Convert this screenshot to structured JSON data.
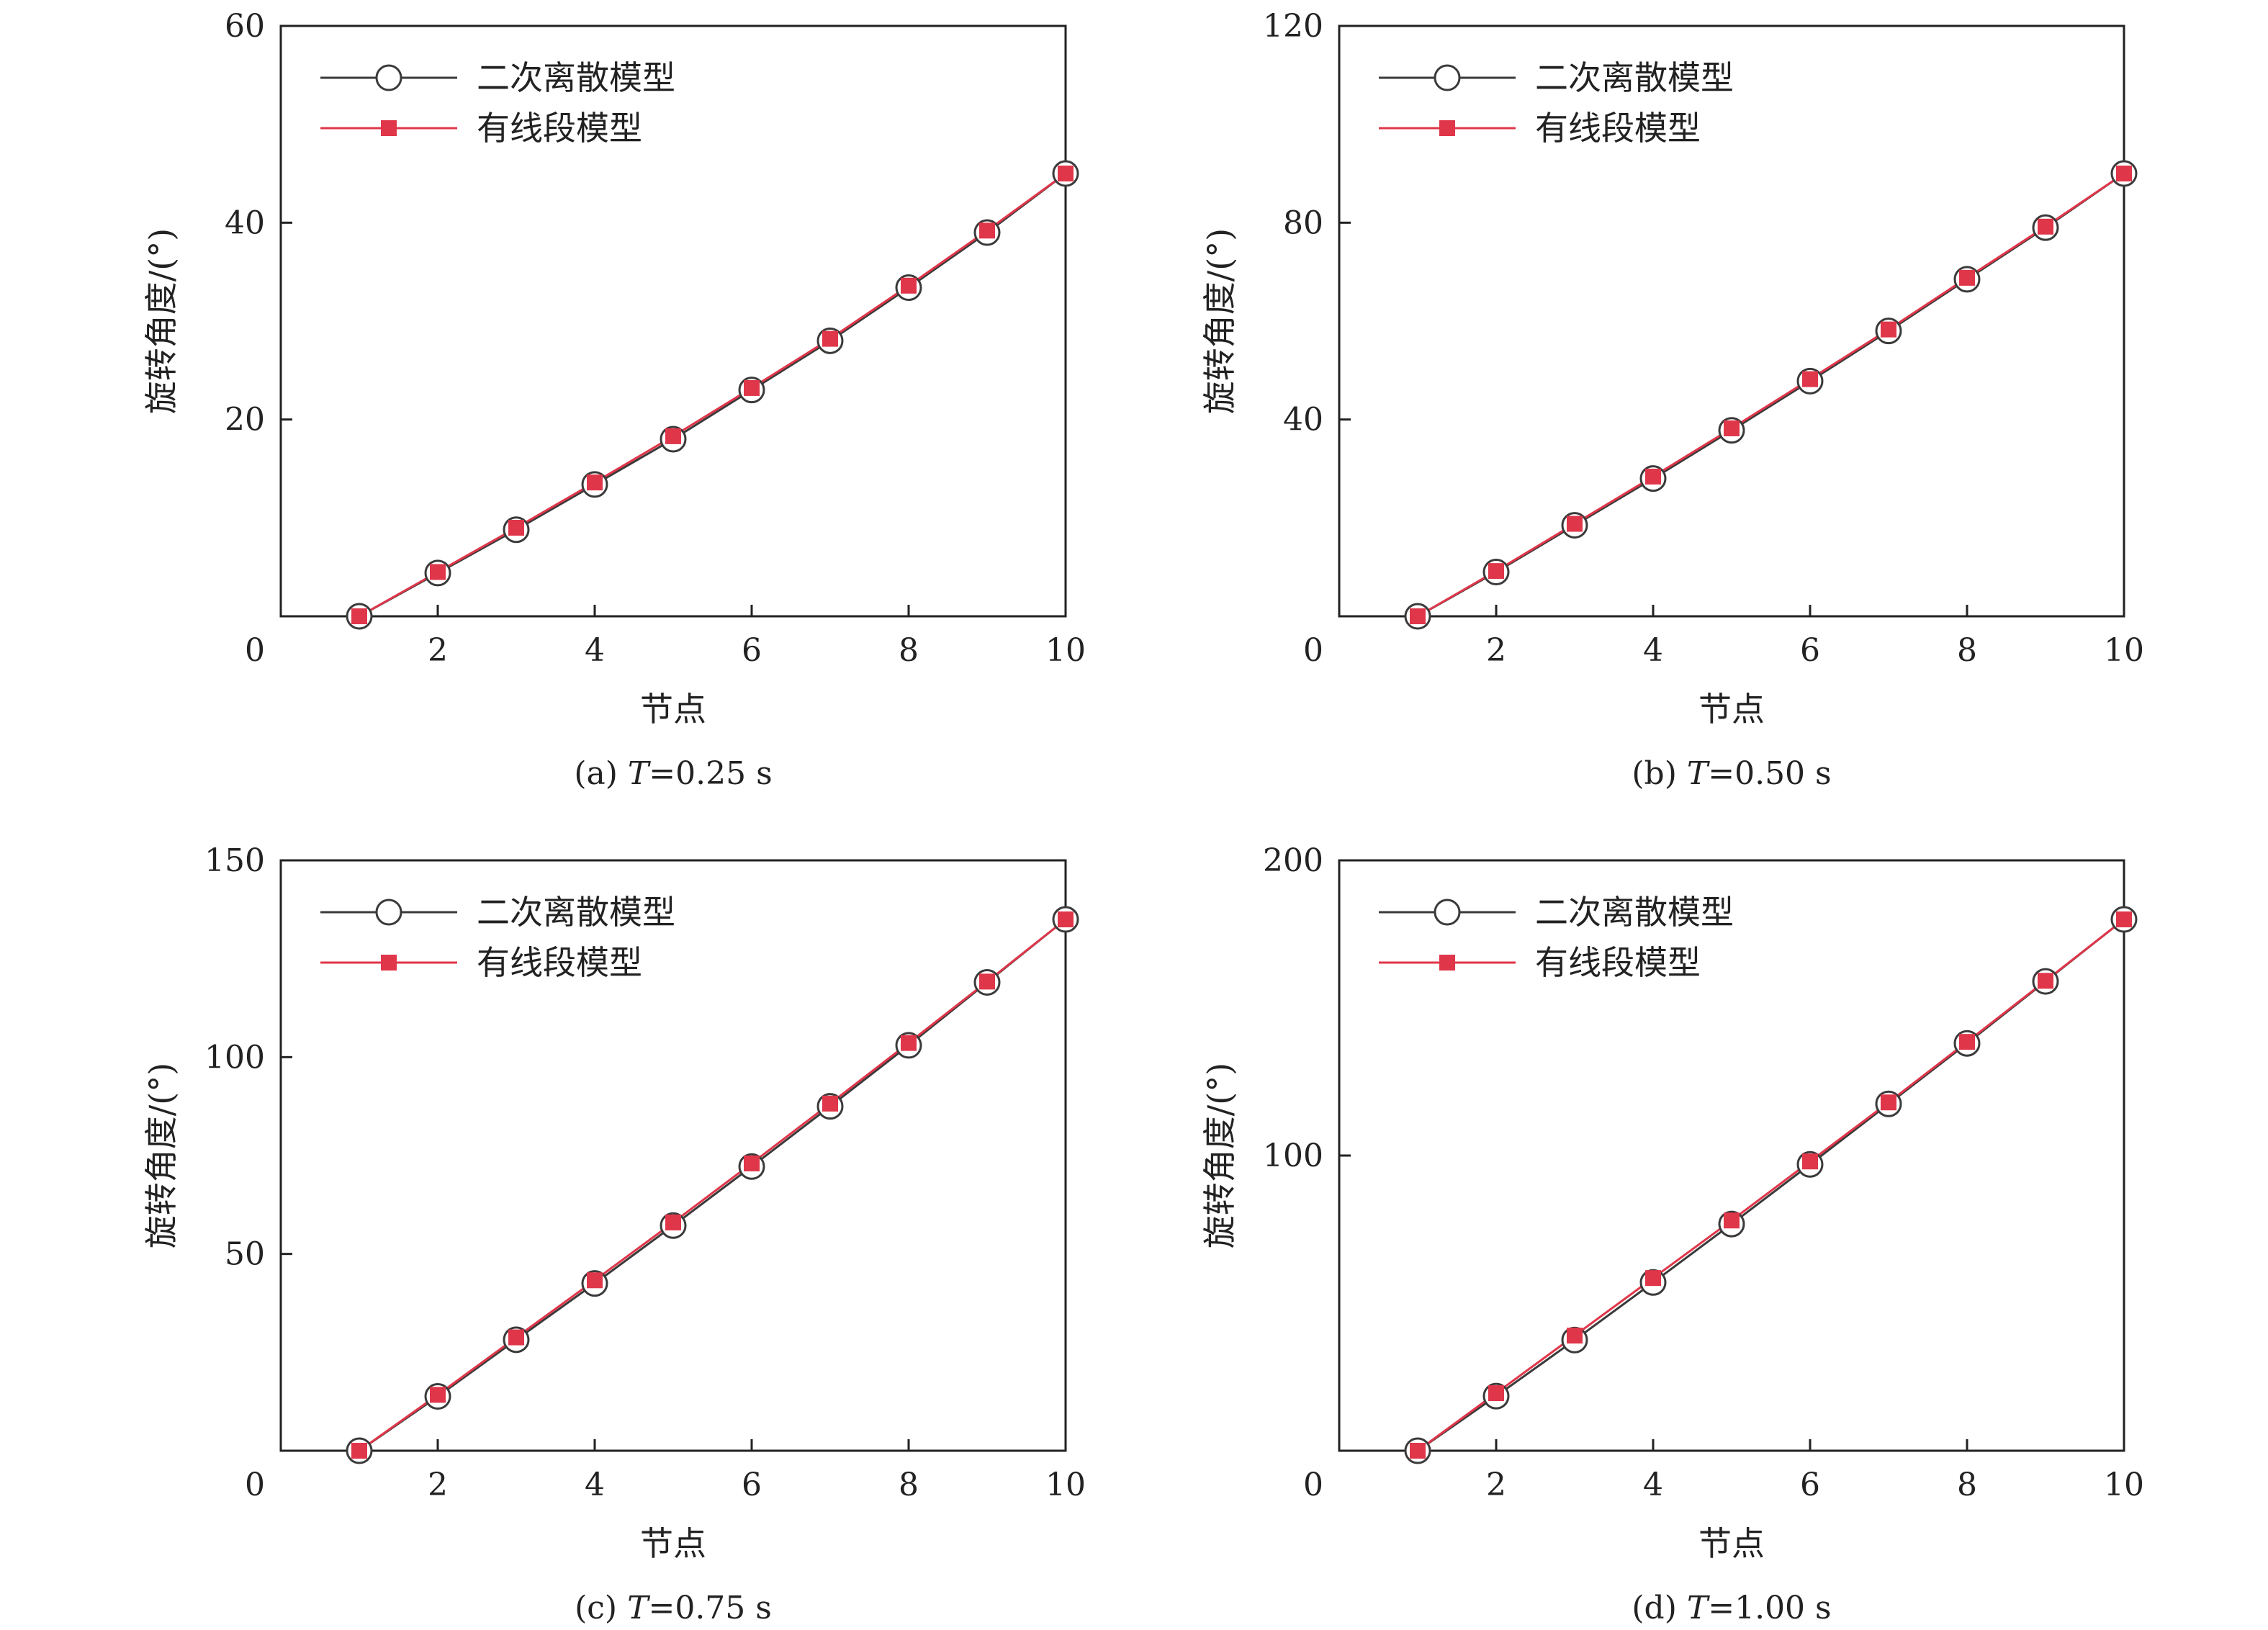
{
  "legend": {
    "series": [
      {
        "name": "二次离散模型",
        "color": "#3a3a3a",
        "marker": "circle"
      },
      {
        "name": "有线段模型",
        "color": "#e0364a",
        "marker": "square"
      }
    ]
  },
  "chart_data": [
    {
      "type": "line",
      "caption": "(a) T=0.25 s",
      "caption_prefix": "(a) ",
      "caption_var": "T",
      "caption_rest": "=0.25 s",
      "xlabel": "节点",
      "ylabel": "旋转角度/(°)",
      "xlim": [
        0,
        10
      ],
      "ylim": [
        0,
        60
      ],
      "xticks": [
        0,
        2,
        4,
        6,
        8,
        10
      ],
      "yticks": [
        0,
        20,
        40,
        60
      ],
      "grid": false,
      "legend_position": "top-left",
      "x": [
        1,
        2,
        3,
        4,
        5,
        6,
        7,
        8,
        9,
        10
      ],
      "series": [
        {
          "name": "二次离散模型",
          "values": [
            0,
            4.4,
            8.8,
            13.4,
            18.0,
            23.0,
            28.0,
            33.4,
            39.0,
            45.0
          ]
        },
        {
          "name": "有线段模型",
          "values": [
            0,
            4.5,
            9.0,
            13.6,
            18.3,
            23.2,
            28.2,
            33.6,
            39.2,
            45.0
          ]
        }
      ]
    },
    {
      "type": "line",
      "caption": "(b) T=0.50 s",
      "caption_prefix": "(b) ",
      "caption_var": "T",
      "caption_rest": "=0.50 s",
      "xlabel": "节点",
      "ylabel": "旋转角度/(°)",
      "xlim": [
        0,
        10
      ],
      "ylim": [
        0,
        120
      ],
      "xticks": [
        0,
        2,
        4,
        6,
        8,
        10
      ],
      "yticks": [
        0,
        40,
        80,
        120
      ],
      "grid": false,
      "legend_position": "top-left",
      "x": [
        1,
        2,
        3,
        4,
        5,
        6,
        7,
        8,
        9,
        10
      ],
      "series": [
        {
          "name": "二次离散模型",
          "values": [
            0,
            9.0,
            18.5,
            28.0,
            37.8,
            47.8,
            58.0,
            68.5,
            79.0,
            90.0
          ]
        },
        {
          "name": "有线段模型",
          "values": [
            0,
            9.2,
            18.8,
            28.4,
            38.2,
            48.2,
            58.3,
            68.8,
            79.2,
            90.0
          ]
        }
      ]
    },
    {
      "type": "line",
      "caption": "(c) T=0.75 s",
      "caption_prefix": "(c) ",
      "caption_var": "T",
      "caption_rest": "=0.75 s",
      "xlabel": "节点",
      "ylabel": "旋转角度/(°)",
      "xlim": [
        0,
        10
      ],
      "ylim": [
        0,
        150
      ],
      "xticks": [
        0,
        2,
        4,
        6,
        8,
        10
      ],
      "yticks": [
        0,
        50,
        100,
        150
      ],
      "grid": false,
      "legend_position": "top-left",
      "x": [
        1,
        2,
        3,
        4,
        5,
        6,
        7,
        8,
        9,
        10
      ],
      "series": [
        {
          "name": "二次离散模型",
          "values": [
            0,
            13.8,
            28.2,
            42.5,
            57.2,
            72.2,
            87.5,
            103.0,
            119.0,
            135.0
          ]
        },
        {
          "name": "有线段模型",
          "values": [
            0,
            14.2,
            28.8,
            43.3,
            58.0,
            73.0,
            88.2,
            103.6,
            119.2,
            135.0
          ]
        }
      ]
    },
    {
      "type": "line",
      "caption": "(d) T=1.00 s",
      "caption_prefix": "(d) ",
      "caption_var": "T",
      "caption_rest": "=1.00 s",
      "xlabel": "节点",
      "ylabel": "旋转角度/(°)",
      "xlim": [
        0,
        10
      ],
      "ylim": [
        0,
        200
      ],
      "xticks": [
        0,
        2,
        4,
        6,
        8,
        10
      ],
      "yticks": [
        0,
        100,
        200
      ],
      "grid": false,
      "legend_position": "top-left",
      "x": [
        1,
        2,
        3,
        4,
        5,
        6,
        7,
        8,
        9,
        10
      ],
      "series": [
        {
          "name": "二次离散模型",
          "values": [
            0,
            18.5,
            37.5,
            57.0,
            76.8,
            97.0,
            117.5,
            138.0,
            159.0,
            180.0
          ]
        },
        {
          "name": "有线段模型",
          "values": [
            0,
            19.5,
            39.0,
            58.5,
            78.0,
            98.0,
            118.0,
            138.5,
            159.2,
            180.0
          ]
        }
      ]
    }
  ]
}
